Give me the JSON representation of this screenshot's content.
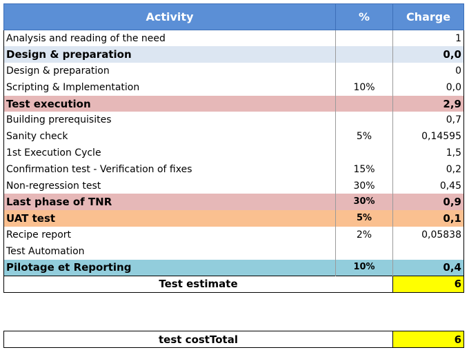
{
  "header": {
    "activity": "Activity",
    "percent": "%",
    "charge": "Charge"
  },
  "rows": [
    {
      "activity": "Analysis and reading of the need",
      "percent": "",
      "charge": "1"
    },
    {
      "activity": "Design & preparation",
      "percent": "",
      "charge": "0,0"
    },
    {
      "activity": "Design & preparation",
      "percent": "",
      "charge": "0"
    },
    {
      "activity": "Scripting & Implementation",
      "percent": "10%",
      "charge": "0,0"
    },
    {
      "activity": "Test execution",
      "percent": "",
      "charge": "2,9"
    },
    {
      "activity": "Building prerequisites",
      "percent": "",
      "charge": "0,7"
    },
    {
      "activity": "Sanity check",
      "percent": "5%",
      "charge": "0,14595"
    },
    {
      "activity": "1st Execution Cycle",
      "percent": "",
      "charge": "1,5"
    },
    {
      "activity": "Confirmation test - Verification of fixes",
      "percent": "15%",
      "charge": "0,2"
    },
    {
      "activity": "Non-regression test",
      "percent": "30%",
      "charge": "0,45"
    },
    {
      "activity": "Last phase of TNR",
      "percent": "30%",
      "charge": "0,9"
    },
    {
      "activity": "UAT test",
      "percent": "5%",
      "charge": "0,1"
    },
    {
      "activity": "Recipe report",
      "percent": "2%",
      "charge": "0,05838"
    },
    {
      "activity": "Test Automation",
      "percent": "",
      "charge": ""
    },
    {
      "activity": "Pilotage et Reporting",
      "percent": "10%",
      "charge": "0,4"
    }
  ],
  "estimate": {
    "label": "Test estimate",
    "value": "6"
  },
  "cost": {
    "label": "test costTotal",
    "value": "6"
  },
  "colors": {
    "header": "#5b8fd6",
    "design_band": "#dce6f2",
    "execution_band": "#e6b8b8",
    "uat_band": "#fac090",
    "pilotage_band": "#92cddc",
    "total_highlight": "#ffff00"
  }
}
